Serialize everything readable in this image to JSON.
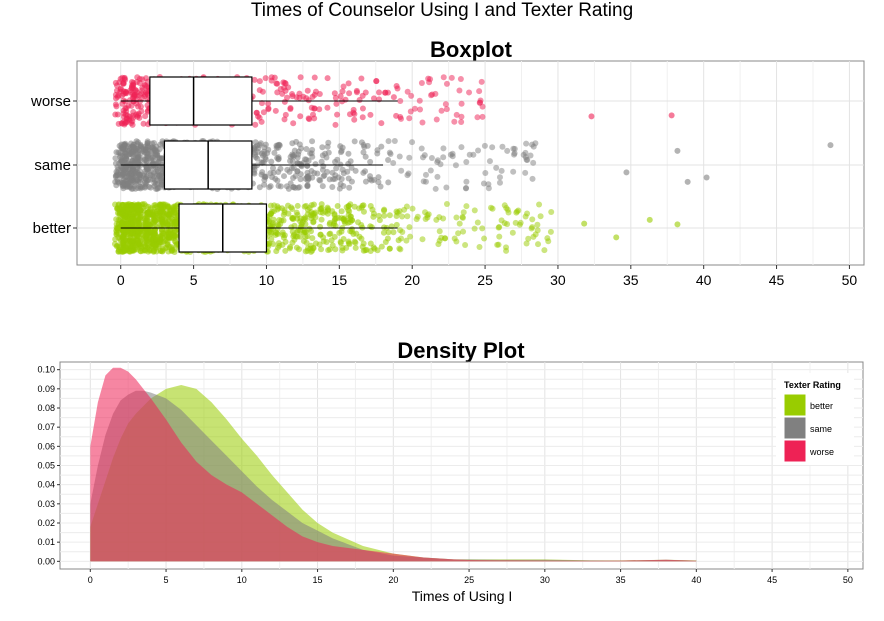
{
  "page_title": "Times of Counselor Using I and Texter Rating",
  "colors": {
    "better": "#99cc00",
    "same": "#808080",
    "worse": "#ee2255"
  },
  "chart_data": [
    {
      "type": "boxplot",
      "title": "Boxplot",
      "xlabel": "",
      "ylabel": "",
      "xlim": [
        -3,
        51
      ],
      "xticks": [
        0,
        5,
        10,
        15,
        20,
        25,
        30,
        35,
        40,
        45,
        50
      ],
      "grid": true,
      "categories": [
        "worse",
        "same",
        "better"
      ],
      "boxes": [
        {
          "name": "worse",
          "whisker_low": 0,
          "q1": 2,
          "median": 5,
          "q3": 9,
          "whisker_high": 19,
          "points_max": 25,
          "outliers": [
            32.3,
            37.8
          ]
        },
        {
          "name": "same",
          "whisker_low": 0,
          "q1": 3,
          "median": 6,
          "q3": 9,
          "whisker_high": 18,
          "points_max": 28.5,
          "outliers": [
            34.7,
            38.2,
            38.9,
            40.2,
            48.7
          ]
        },
        {
          "name": "better",
          "whisker_low": 0,
          "q1": 4,
          "median": 7,
          "q3": 10,
          "whisker_high": 19,
          "points_max": 30,
          "outliers": [
            31.8,
            34.0,
            36.3,
            38.2
          ]
        }
      ]
    },
    {
      "type": "area",
      "title": "Density Plot",
      "xlabel": "Times of Using I",
      "ylabel": "",
      "xlim": [
        -2,
        51
      ],
      "ylim": [
        -0.004,
        0.104
      ],
      "xticks": [
        0,
        5,
        10,
        15,
        20,
        25,
        30,
        35,
        40,
        45,
        50
      ],
      "yticks": [
        0.0,
        0.01,
        0.02,
        0.03,
        0.04,
        0.05,
        0.06,
        0.07,
        0.08,
        0.09,
        0.1
      ],
      "ytick_labels": [
        "0.00",
        "0.01",
        "0.02",
        "0.03",
        "0.04",
        "0.05",
        "0.06",
        "0.07",
        "0.08",
        "0.09",
        "0.10"
      ],
      "legend": {
        "title": "Texter Rating",
        "position": "top-right",
        "items": [
          "better",
          "same",
          "worse"
        ]
      },
      "x": [
        0,
        0.5,
        1,
        1.5,
        2,
        2.5,
        3,
        3.5,
        4,
        5,
        6,
        7,
        8,
        9,
        10,
        11,
        12,
        13,
        14,
        15,
        16,
        18,
        20,
        22,
        24,
        25,
        27,
        30,
        33,
        35,
        38,
        40
      ],
      "series": [
        {
          "name": "better",
          "values": [
            0.018,
            0.03,
            0.042,
            0.054,
            0.064,
            0.072,
            0.077,
            0.081,
            0.085,
            0.09,
            0.092,
            0.09,
            0.083,
            0.074,
            0.064,
            0.055,
            0.045,
            0.036,
            0.027,
            0.02,
            0.015,
            0.008,
            0.004,
            0.002,
            0.001,
            0.001,
            0.001,
            0.001,
            0.0005,
            0.0005,
            0.0008,
            0.0005
          ]
        },
        {
          "name": "same",
          "values": [
            0.03,
            0.05,
            0.066,
            0.077,
            0.084,
            0.087,
            0.089,
            0.089,
            0.088,
            0.085,
            0.079,
            0.071,
            0.063,
            0.055,
            0.047,
            0.039,
            0.032,
            0.026,
            0.02,
            0.016,
            0.012,
            0.006,
            0.003,
            0.002,
            0.001,
            0.001,
            0.0008,
            0.0008,
            0.0005,
            0.0004,
            0.0008,
            0.0004
          ]
        },
        {
          "name": "worse",
          "values": [
            0.06,
            0.083,
            0.097,
            0.101,
            0.101,
            0.099,
            0.095,
            0.09,
            0.085,
            0.074,
            0.062,
            0.052,
            0.045,
            0.04,
            0.036,
            0.03,
            0.024,
            0.018,
            0.013,
            0.01,
            0.008,
            0.006,
            0.004,
            0.002,
            0.001,
            0.0007,
            0.0005,
            0.0004,
            0.0003,
            0.0004,
            0.0008,
            0.0003
          ]
        }
      ]
    }
  ]
}
